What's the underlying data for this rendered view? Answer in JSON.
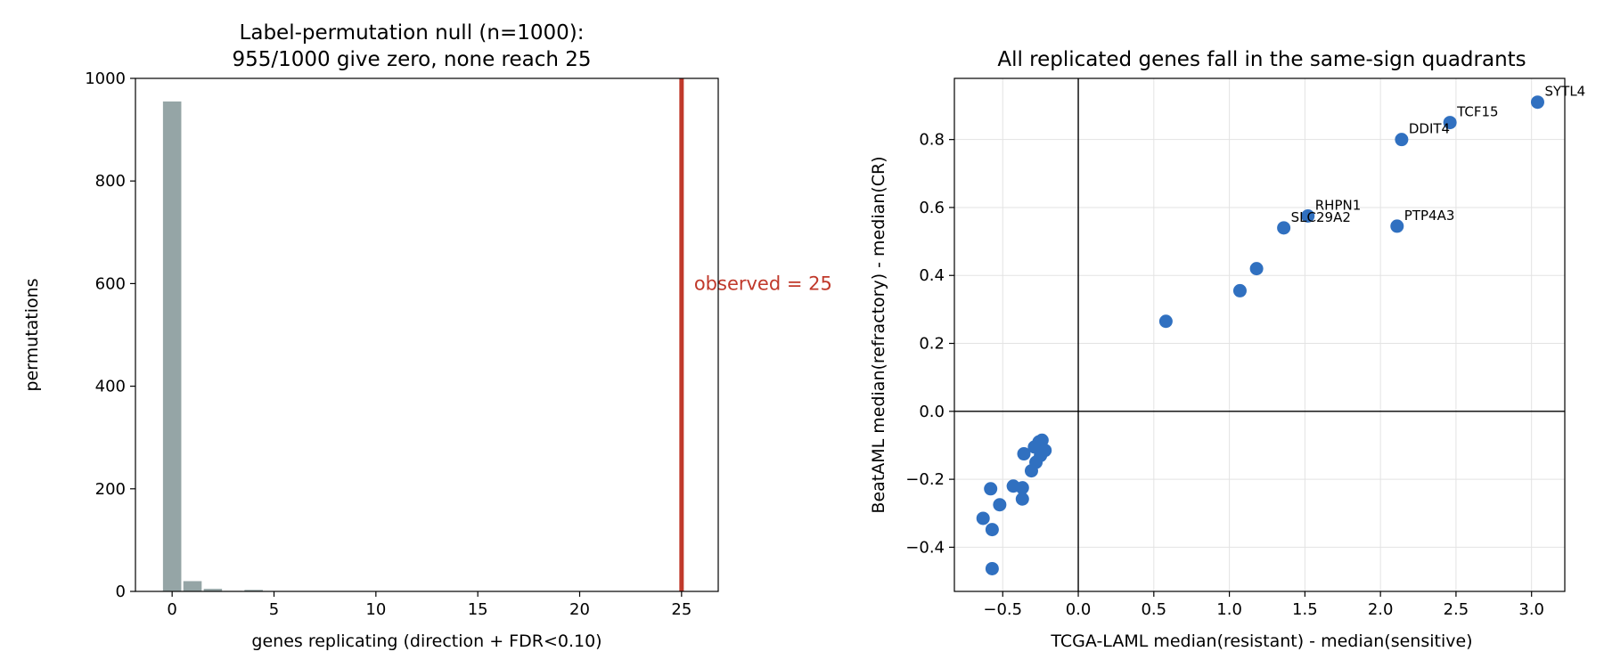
{
  "chart_data": [
    {
      "type": "bar",
      "title_line1": "Label-permutation null (n=1000):",
      "title_line2": "955/1000 give zero, none reach 25",
      "xlabel": "genes replicating (direction + FDR<0.10)",
      "ylabel": "permutations",
      "xlim": [
        -1.8,
        26.8
      ],
      "ylim": [
        0,
        1000
      ],
      "xticks": [
        0,
        5,
        10,
        15,
        20,
        25
      ],
      "yticks": [
        0,
        200,
        400,
        600,
        800,
        1000
      ],
      "bar_color": "#95a5a6",
      "categories": [
        0,
        1,
        2,
        3,
        4
      ],
      "values": [
        955,
        20,
        5,
        1,
        3
      ],
      "observed": 25,
      "observed_label": "observed = 25",
      "observed_color": "#c0392b",
      "grid": false
    },
    {
      "type": "scatter",
      "title": "All replicated genes fall in the same-sign quadrants",
      "xlabel": "TCGA-LAML  median(resistant) - median(sensitive)",
      "ylabel": "BeatAML  median(refractory) - median(CR)",
      "xlim": [
        -0.82,
        3.22
      ],
      "ylim": [
        -0.53,
        0.98
      ],
      "xticks": [
        -0.5,
        0.0,
        0.5,
        1.0,
        1.5,
        2.0,
        2.5,
        3.0
      ],
      "xtick_labels": [
        "−0.5",
        "0.0",
        "0.5",
        "1.0",
        "1.5",
        "2.0",
        "2.5",
        "3.0"
      ],
      "yticks": [
        -0.4,
        -0.2,
        0.0,
        0.2,
        0.4,
        0.6,
        0.8
      ],
      "ytick_labels": [
        "−0.4",
        "−0.2",
        "0.0",
        "0.2",
        "0.4",
        "0.6",
        "0.8"
      ],
      "grid": true,
      "point_color": "#3070c0",
      "points": [
        {
          "x": 3.04,
          "y": 0.91,
          "label": "SYTL4"
        },
        {
          "x": 2.46,
          "y": 0.85,
          "label": "TCF15"
        },
        {
          "x": 2.14,
          "y": 0.8,
          "label": "DDIT4"
        },
        {
          "x": 1.52,
          "y": 0.575,
          "label": "RHPN1"
        },
        {
          "x": 1.36,
          "y": 0.54,
          "label": "SLC29A2"
        },
        {
          "x": 2.11,
          "y": 0.545,
          "label": "PTP4A3"
        },
        {
          "x": 1.18,
          "y": 0.42,
          "label": ""
        },
        {
          "x": 1.07,
          "y": 0.355,
          "label": ""
        },
        {
          "x": 0.58,
          "y": 0.265,
          "label": ""
        },
        {
          "x": -0.36,
          "y": -0.125,
          "label": ""
        },
        {
          "x": -0.26,
          "y": -0.09,
          "label": ""
        },
        {
          "x": -0.24,
          "y": -0.085,
          "label": ""
        },
        {
          "x": -0.29,
          "y": -0.105,
          "label": ""
        },
        {
          "x": -0.22,
          "y": -0.115,
          "label": ""
        },
        {
          "x": -0.25,
          "y": -0.13,
          "label": ""
        },
        {
          "x": -0.28,
          "y": -0.15,
          "label": ""
        },
        {
          "x": -0.31,
          "y": -0.175,
          "label": ""
        },
        {
          "x": -0.43,
          "y": -0.22,
          "label": ""
        },
        {
          "x": -0.37,
          "y": -0.225,
          "label": ""
        },
        {
          "x": -0.58,
          "y": -0.228,
          "label": ""
        },
        {
          "x": -0.37,
          "y": -0.258,
          "label": ""
        },
        {
          "x": -0.52,
          "y": -0.275,
          "label": ""
        },
        {
          "x": -0.63,
          "y": -0.315,
          "label": ""
        },
        {
          "x": -0.57,
          "y": -0.348,
          "label": ""
        },
        {
          "x": -0.57,
          "y": -0.463,
          "label": ""
        }
      ]
    }
  ]
}
